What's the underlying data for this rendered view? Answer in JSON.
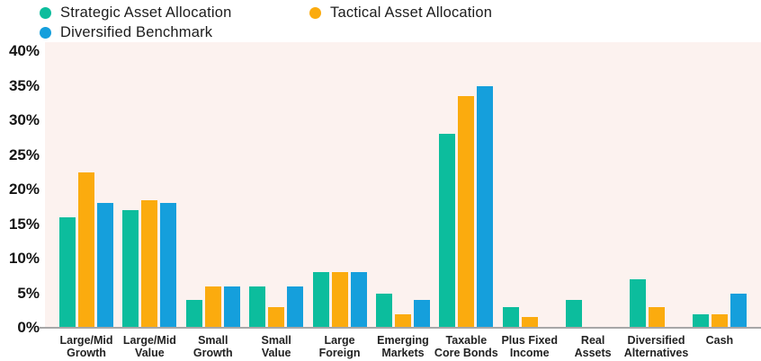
{
  "legend": {
    "items": [
      {
        "label": "Strategic Asset Allocation",
        "color": "#0CBD9D"
      },
      {
        "label": "Tactical Asset Allocation",
        "color": "#FBAB0E"
      },
      {
        "label": "Diversified Benchmark",
        "color": "#159FDC"
      }
    ]
  },
  "y_axis": {
    "tick_labels": [
      "0%",
      "5%",
      "10%",
      "15%",
      "20%",
      "25%",
      "30%",
      "35%",
      "40%"
    ],
    "tick_values": [
      0,
      5,
      10,
      15,
      20,
      25,
      30,
      35,
      40
    ]
  },
  "chart_data": {
    "type": "bar",
    "title": "",
    "xlabel": "",
    "ylabel": "",
    "y_unit": "%",
    "ylim": [
      0,
      40
    ],
    "y_tick_step": 5,
    "grid": false,
    "legend_position": "top-left",
    "plot_bg": "#FCF2EF",
    "axis_color": "#A7A7A7",
    "categories": [
      "Large/Mid Growth",
      "Large/Mid Value",
      "Small Growth",
      "Small Value",
      "Large Foreign",
      "Emerging Markets",
      "Taxable Core Bonds",
      "Plus Fixed Income",
      "Real Assets",
      "Diversified Alternatives",
      "Cash"
    ],
    "category_lines": [
      [
        "Large/Mid",
        "Growth"
      ],
      [
        "Large/Mid",
        "Value"
      ],
      [
        "Small",
        "Growth"
      ],
      [
        "Small",
        "Value"
      ],
      [
        "Large",
        "Foreign"
      ],
      [
        "Emerging",
        "Markets"
      ],
      [
        "Taxable",
        "Core Bonds"
      ],
      [
        "Plus Fixed",
        "Income"
      ],
      [
        "Real",
        "Assets"
      ],
      [
        "Diversified",
        "Alternatives"
      ],
      [
        "Cash"
      ]
    ],
    "series": [
      {
        "name": "Strategic Asset Allocation",
        "color": "#0CBD9D",
        "values": [
          16,
          17,
          4,
          6,
          8,
          5,
          28,
          3,
          4,
          7,
          2
        ]
      },
      {
        "name": "Tactical Asset Allocation",
        "color": "#FBAB0E",
        "values": [
          22.5,
          18.5,
          6,
          3,
          8,
          2,
          33.5,
          1.5,
          0,
          3,
          2
        ]
      },
      {
        "name": "Diversified Benchmark",
        "color": "#159FDC",
        "values": [
          18,
          18,
          6,
          6,
          8,
          4,
          35,
          0,
          0,
          0,
          5
        ]
      }
    ]
  }
}
